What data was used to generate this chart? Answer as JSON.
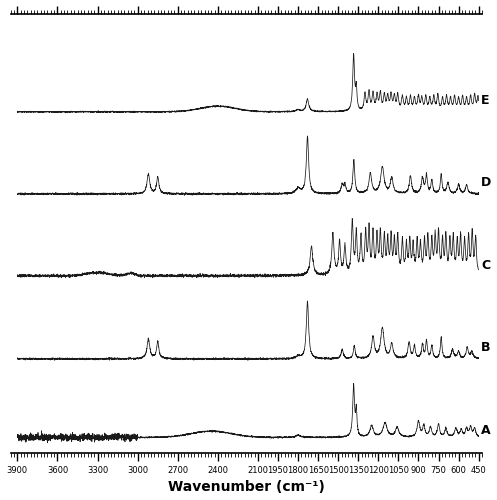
{
  "xlabel": "Wavenumber (cm⁻¹)",
  "x_ticks": [
    3900,
    3600,
    3300,
    3000,
    2700,
    2400,
    2100,
    1950,
    1800,
    1650,
    1500,
    1350,
    1200,
    1050,
    900,
    750,
    600,
    450
  ],
  "x_tick_labels": [
    "3900",
    "3600",
    "3300",
    "3000",
    "2700",
    "2400",
    "2100",
    "1950",
    "1800",
    "1650",
    "1500",
    "1350",
    "1200",
    "1050",
    "900",
    "750",
    "600",
    "450"
  ],
  "spectra_labels": [
    "E",
    "D",
    "C",
    "B",
    "A"
  ],
  "background_color": "#ffffff",
  "line_color": "#1a1a1a",
  "offsets": [
    4.0,
    3.0,
    2.0,
    1.0,
    0.0
  ],
  "scale": 0.75
}
